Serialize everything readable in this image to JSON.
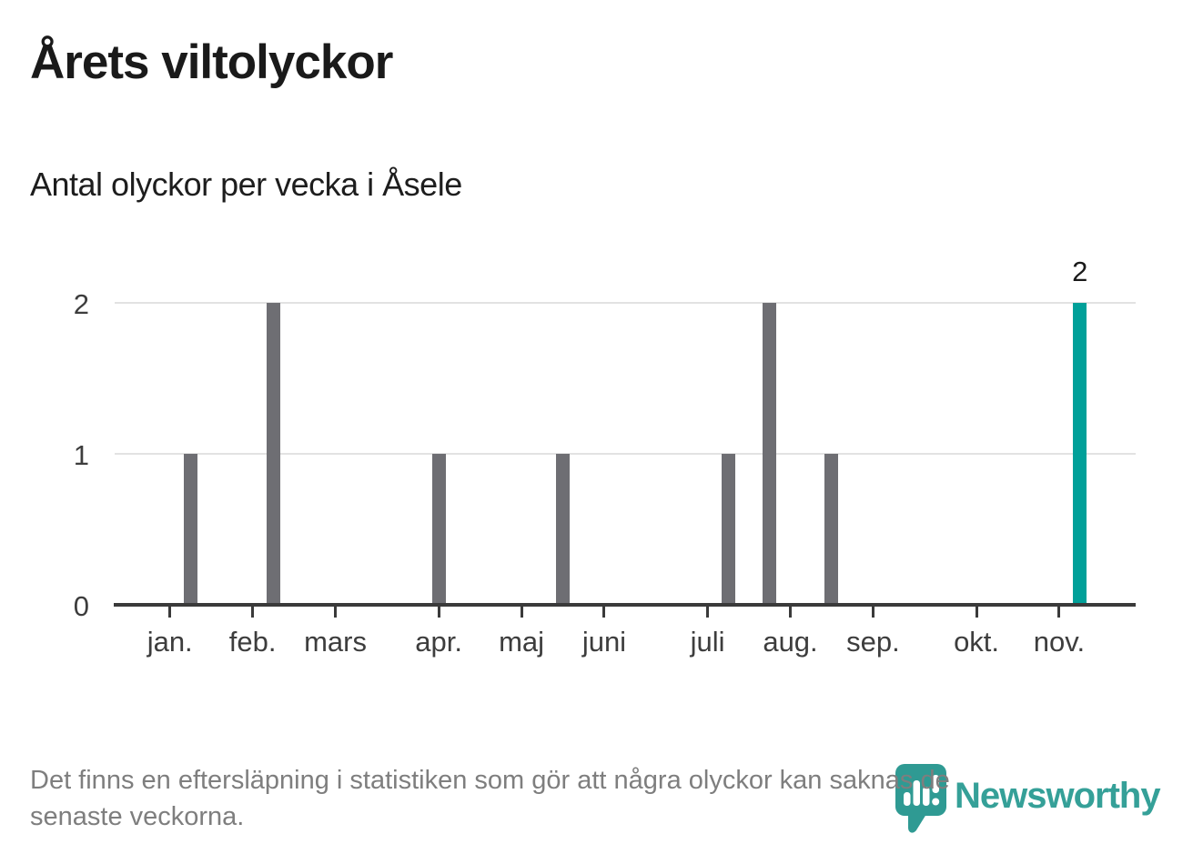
{
  "header": {
    "title": "Årets viltolyckor",
    "subtitle": "Antal olyckor per vecka i Åsele"
  },
  "footer": {
    "lines": [
      "Det finns en eftersläpning i statistiken som gör att några olyckor kan saknas de",
      "senaste veckorna."
    ]
  },
  "branding": {
    "name": "Newsworthy",
    "icon": "bar-chart-map-pin-icon",
    "color": "#35A098"
  },
  "chart_data": {
    "type": "bar",
    "title": "Årets viltolyckor",
    "subtitle": "Antal olyckor per vecka i Åsele",
    "x_unit": "week_of_year",
    "ylim": [
      0,
      2
    ],
    "y_ticks": [
      0,
      1,
      2
    ],
    "grid": "horizontal",
    "legend": "none",
    "bar_colors": {
      "default": "#6E6E73",
      "highlight": "#00A099"
    },
    "month_ticks": [
      {
        "label": "jan.",
        "week": 0
      },
      {
        "label": "feb.",
        "week": 4
      },
      {
        "label": "mars",
        "week": 8
      },
      {
        "label": "apr.",
        "week": 13
      },
      {
        "label": "maj",
        "week": 17
      },
      {
        "label": "juni",
        "week": 21
      },
      {
        "label": "juli",
        "week": 26
      },
      {
        "label": "aug.",
        "week": 30
      },
      {
        "label": "sep.",
        "week": 34
      },
      {
        "label": "okt.",
        "week": 39
      },
      {
        "label": "nov.",
        "week": 43
      }
    ],
    "bars": [
      {
        "week": 1,
        "value": 1,
        "color": "default"
      },
      {
        "week": 5,
        "value": 2,
        "color": "default"
      },
      {
        "week": 13,
        "value": 1,
        "color": "default"
      },
      {
        "week": 19,
        "value": 1,
        "color": "default"
      },
      {
        "week": 27,
        "value": 1,
        "color": "default"
      },
      {
        "week": 29,
        "value": 2,
        "color": "default"
      },
      {
        "week": 32,
        "value": 1,
        "color": "default"
      },
      {
        "week": 44,
        "value": 2,
        "color": "highlight",
        "data_label": "2"
      }
    ]
  }
}
